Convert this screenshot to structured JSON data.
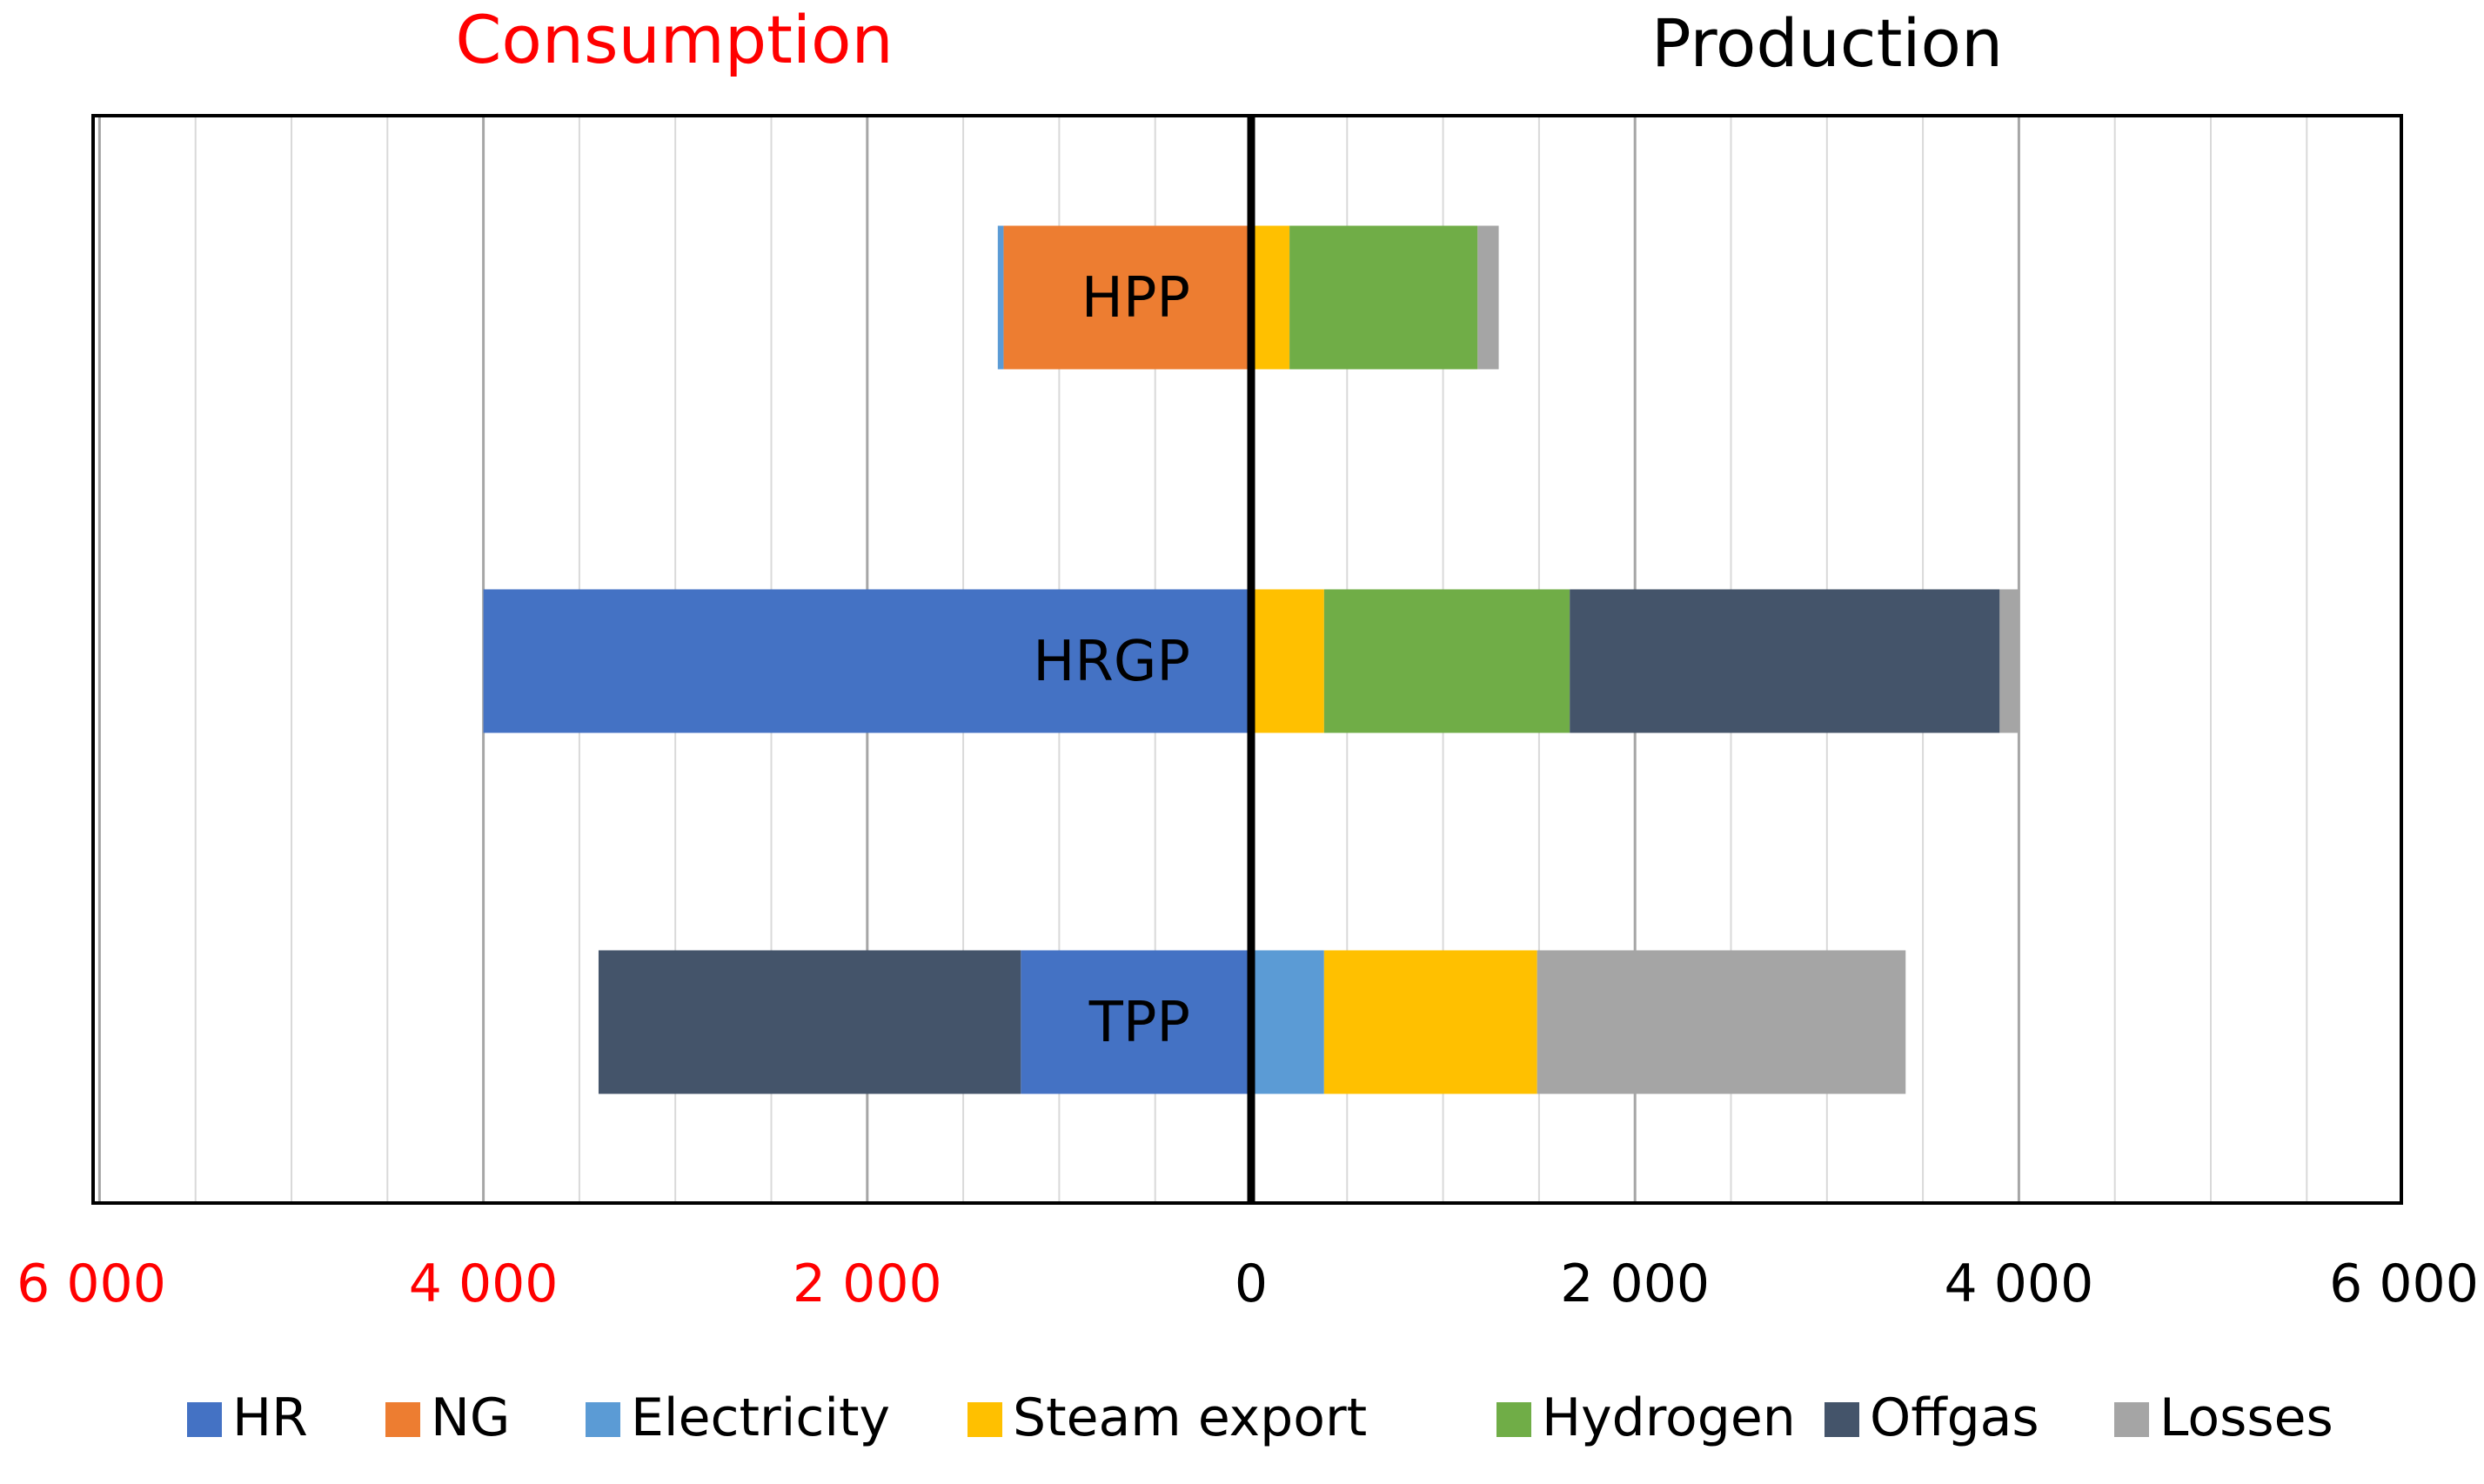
{
  "chart_data": {
    "type": "bar",
    "orientation": "horizontal",
    "stacked": true,
    "headers": {
      "left": "Consumption",
      "right": "Production"
    },
    "categories": [
      "HPP",
      "HRGP",
      "TPP"
    ],
    "xlim": [
      -6000,
      6000
    ],
    "xticks": [
      -6000,
      -4000,
      -2000,
      0,
      2000,
      4000,
      6000
    ],
    "xtick_labels": [
      "6 000",
      "4 000",
      "2 000",
      "0",
      "2 000",
      "4 000",
      "6 000"
    ],
    "grid": true,
    "legend": {
      "position": "bottom",
      "order": [
        "HR",
        "NG",
        "Electricity",
        "Steam export",
        "Hydrogen",
        "Offgas",
        "Losses"
      ]
    },
    "colors": {
      "HR": "#4472C4",
      "NG": "#ED7D31",
      "Electricity": "#5B9BD5",
      "Steam export": "#FFC000",
      "Hydrogen": "#70AD47",
      "Offgas": "#44546A",
      "Losses": "#A5A5A5",
      "negative_label": "#FF0000",
      "positive_label": "#000000"
    },
    "consumption": [
      {
        "category": "HPP",
        "segments": [
          {
            "series": "NG",
            "value": 1290
          },
          {
            "series": "Electricity",
            "value": 30
          }
        ]
      },
      {
        "category": "HRGP",
        "segments": [
          {
            "series": "HR",
            "value": 4000
          }
        ]
      },
      {
        "category": "TPP",
        "segments": [
          {
            "series": "HR",
            "value": 1200
          },
          {
            "series": "Offgas",
            "value": 2200
          }
        ]
      }
    ],
    "production": [
      {
        "category": "HPP",
        "segments": [
          {
            "series": "Steam export",
            "value": 200
          },
          {
            "series": "Hydrogen",
            "value": 980
          },
          {
            "series": "Losses",
            "value": 110
          }
        ]
      },
      {
        "category": "HRGP",
        "segments": [
          {
            "series": "Steam export",
            "value": 380
          },
          {
            "series": "Hydrogen",
            "value": 1280
          },
          {
            "series": "Offgas",
            "value": 2240
          },
          {
            "series": "Losses",
            "value": 100
          }
        ]
      },
      {
        "category": "TPP",
        "segments": [
          {
            "series": "Electricity",
            "value": 380
          },
          {
            "series": "Steam export",
            "value": 1110
          },
          {
            "series": "Losses",
            "value": 1920
          }
        ]
      }
    ]
  }
}
